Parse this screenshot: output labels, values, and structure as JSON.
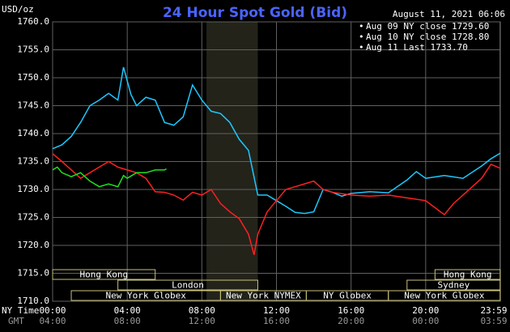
{
  "chart_data": {
    "type": "line",
    "title": "24 Hour Spot Gold (Bid)",
    "timestamp": "August 11, 2021 06:06",
    "y_label": "USD/oz",
    "x_label": "NY Time",
    "x2_label": "GMT",
    "xlim": [
      0,
      24
    ],
    "ylim": [
      1710,
      1760
    ],
    "grid": true,
    "xticks": [
      {
        "value": 0,
        "label": "00:00"
      },
      {
        "value": 4,
        "label": "04:00"
      },
      {
        "value": 8,
        "label": "08:00"
      },
      {
        "value": 12,
        "label": "12:00"
      },
      {
        "value": 16,
        "label": "16:00"
      },
      {
        "value": 20,
        "label": "20:00"
      },
      {
        "value": 23.983,
        "label": "23:59"
      }
    ],
    "x2ticks": [
      {
        "value": 0,
        "label": "04:00"
      },
      {
        "value": 4,
        "label": "08:00"
      },
      {
        "value": 8,
        "label": "12:00"
      },
      {
        "value": 12,
        "label": "16:00"
      },
      {
        "value": 16,
        "label": "20:00"
      },
      {
        "value": 20,
        "label": "00:00"
      },
      {
        "value": 23.983,
        "label": "03:59"
      }
    ],
    "yticks": [
      {
        "value": 1710,
        "label": "1710.0"
      },
      {
        "value": 1715,
        "label": "1715.0"
      },
      {
        "value": 1720,
        "label": "1720.0"
      },
      {
        "value": 1725,
        "label": "1725.0"
      },
      {
        "value": 1730,
        "label": "1730.0"
      },
      {
        "value": 1735,
        "label": "1735.0"
      },
      {
        "value": 1740,
        "label": "1740.0"
      },
      {
        "value": 1745,
        "label": "1745.0"
      },
      {
        "value": 1750,
        "label": "1750.0"
      },
      {
        "value": 1755,
        "label": "1755.0"
      },
      {
        "value": 1760,
        "label": "1760.0"
      }
    ],
    "highlight_x": [
      8.25,
      11
    ],
    "sessions": [
      [
        {
          "label": "Hong Kong",
          "start": 0,
          "end": 5.5
        },
        {
          "label": "Hong Kong",
          "start": 20.5,
          "end": 24
        }
      ],
      [
        {
          "label": "London",
          "start": 3.5,
          "end": 11
        },
        {
          "label": "Sydney",
          "start": 19,
          "end": 24
        }
      ],
      [
        {
          "label": "New York Globex",
          "start": 1,
          "end": 9
        },
        {
          "label": "New York NYMEX",
          "start": 9,
          "end": 13.6
        },
        {
          "label": "NY Globex",
          "start": 13.6,
          "end": 18
        },
        {
          "label": "New York Globex",
          "start": 18,
          "end": 24
        }
      ]
    ],
    "series": [
      {
        "name": "Aug 09 NY close 1729.60",
        "color": "#1ec8ff",
        "x": [
          0,
          0.5,
          1,
          1.5,
          2,
          2.5,
          3,
          3.5,
          3.8,
          4.2,
          4.5,
          5,
          5.5,
          6,
          6.5,
          7,
          7.5,
          8,
          8.5,
          9,
          9.5,
          10,
          10.5,
          11,
          11.5,
          12,
          12.5,
          13,
          13.5,
          14,
          14.5,
          15,
          15.5,
          16,
          17,
          18,
          19,
          19.5,
          20,
          21,
          22,
          23,
          23.5,
          24
        ],
        "values": [
          1737.3,
          1738,
          1739.5,
          1742,
          1745,
          1746,
          1747.2,
          1746,
          1751.9,
          1747,
          1745,
          1746.5,
          1746,
          1742,
          1741.5,
          1743,
          1748.7,
          1746,
          1744,
          1743.6,
          1742,
          1739,
          1737,
          1729,
          1729,
          1728,
          1727,
          1725.9,
          1725.7,
          1726,
          1730,
          1729.5,
          1728.8,
          1729.3,
          1729.6,
          1729.4,
          1731.7,
          1733.2,
          1732,
          1732.5,
          1732,
          1734.2,
          1735.5,
          1736.5
        ]
      },
      {
        "name": "Aug 10 NY close 1728.80",
        "color": "#ff2020",
        "x": [
          0,
          0.5,
          1,
          1.5,
          2,
          2.5,
          3,
          3.5,
          4,
          4.5,
          5,
          5.5,
          6,
          6.5,
          7,
          7.5,
          8,
          8.5,
          9,
          9.5,
          10,
          10.5,
          10.8,
          11,
          11.5,
          12,
          12.5,
          13,
          13.5,
          14,
          14.5,
          15,
          16,
          17,
          18,
          19,
          20,
          21,
          21.5,
          22,
          22.5,
          23,
          23.5,
          24
        ],
        "values": [
          1736.4,
          1735,
          1733.5,
          1732,
          1733,
          1734,
          1735,
          1734,
          1733.5,
          1733,
          1732,
          1729.6,
          1729.5,
          1729,
          1728.1,
          1729.5,
          1729,
          1730,
          1727.5,
          1726,
          1724.8,
          1722,
          1718.3,
          1722,
          1726,
          1728,
          1730,
          1730.5,
          1731,
          1731.5,
          1730,
          1729.5,
          1729,
          1728.8,
          1729,
          1728.5,
          1728,
          1725.5,
          1727.5,
          1729,
          1730.5,
          1732,
          1734.5,
          1733.8
        ]
      },
      {
        "name": "Aug 11 Last 1733.70",
        "color": "#20e020",
        "x": [
          0,
          0.25,
          0.5,
          1,
          1.5,
          2,
          2.5,
          3,
          3.5,
          3.8,
          4,
          4.5,
          5,
          5.5,
          6,
          6.1
        ],
        "values": [
          1733.5,
          1734,
          1733,
          1732.3,
          1733,
          1731.5,
          1730.5,
          1731,
          1730.5,
          1732.5,
          1732,
          1733,
          1733,
          1733.5,
          1733.5,
          1733.7
        ]
      }
    ]
  }
}
